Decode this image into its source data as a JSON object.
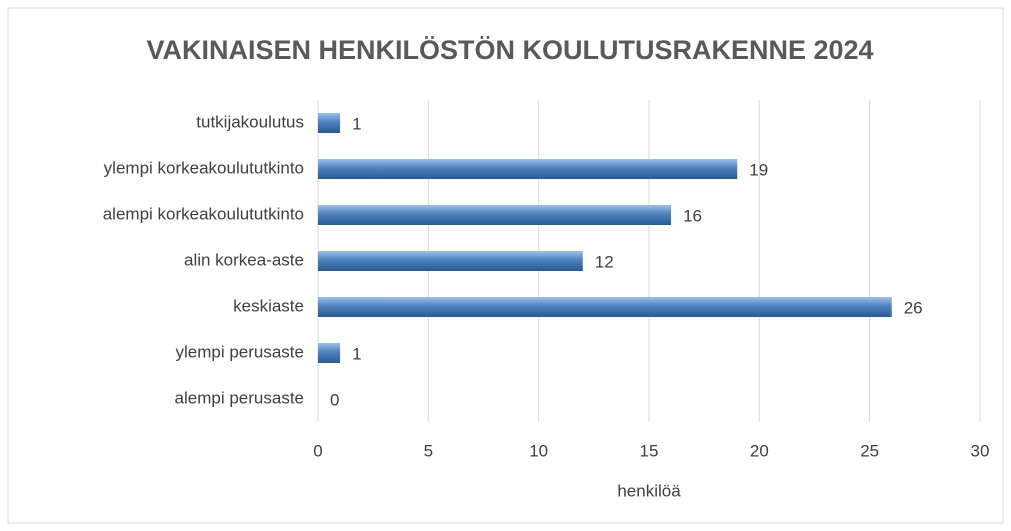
{
  "chart_data": {
    "type": "bar",
    "orientation": "horizontal",
    "title": "VAKINAISEN HENKILÖSTÖN KOULUTUSRAKENNE 2024",
    "categories": [
      "tutkijakoulutus",
      "ylempi korkeakoulututkinto",
      "alempi korkeakoulututkinto",
      "alin korkea-aste",
      "keskiaste",
      "ylempi perusaste",
      "alempi perusaste"
    ],
    "values": [
      1,
      19,
      16,
      12,
      26,
      1,
      0
    ],
    "color": "#4f81bd",
    "xlabel": "henkilöä",
    "xlim": [
      0,
      30
    ],
    "xticks": [
      0,
      5,
      10,
      15,
      20,
      25,
      30
    ],
    "grid": true
  }
}
